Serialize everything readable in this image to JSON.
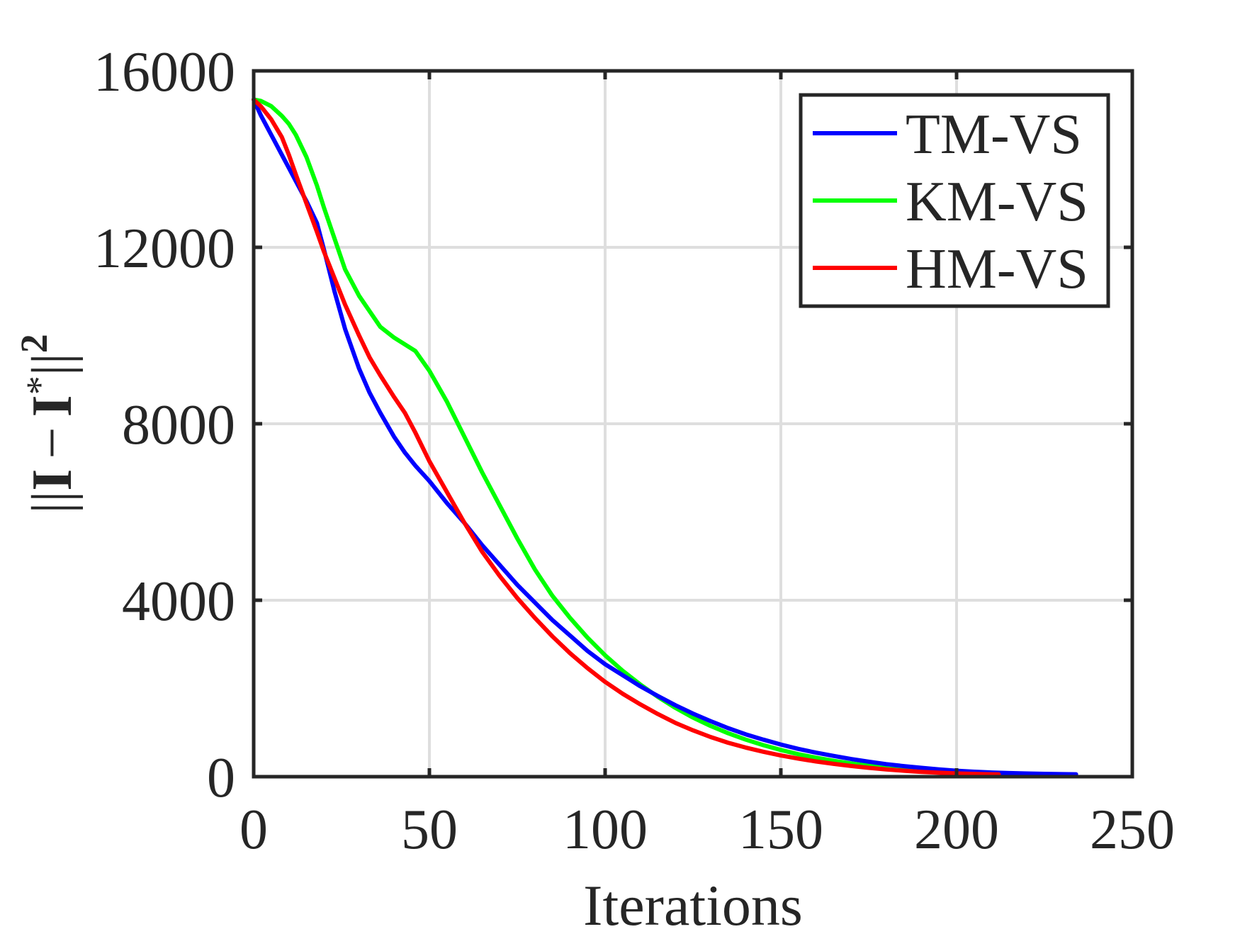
{
  "chart_data": {
    "type": "line",
    "title": "",
    "xlabel": "Iterations",
    "ylabel": "||I − I*||²",
    "ylabel_parts": {
      "bars_left": "||",
      "a": "I",
      "minus": "−",
      "b": "I",
      "star": "*",
      "bars_right": "||",
      "exp": "2"
    },
    "xlim": [
      0,
      250
    ],
    "ylim": [
      0,
      16000
    ],
    "xticks": [
      0,
      50,
      100,
      150,
      200,
      250
    ],
    "yticks": [
      0,
      4000,
      8000,
      12000,
      16000
    ],
    "xtick_labels": [
      "0",
      "50",
      "100",
      "150",
      "200",
      "250"
    ],
    "ytick_labels": [
      "0",
      "4000",
      "8000",
      "12000",
      "16000"
    ],
    "grid": true,
    "legend_position": "top-right",
    "series": [
      {
        "name": "TM-VS",
        "color": "#0000ff",
        "x": [
          0,
          2,
          5,
          8,
          10,
          12,
          15,
          18,
          20,
          23,
          26,
          30,
          33,
          36,
          40,
          43,
          46,
          50,
          55,
          60,
          65,
          70,
          75,
          80,
          85,
          90,
          95,
          100,
          105,
          110,
          115,
          120,
          125,
          130,
          135,
          140,
          145,
          150,
          155,
          160,
          165,
          170,
          175,
          180,
          185,
          190,
          195,
          200,
          205,
          210,
          215,
          220,
          225,
          230,
          234
        ],
        "y": [
          15350,
          15000,
          14550,
          14100,
          13800,
          13500,
          13050,
          12550,
          11950,
          11000,
          10150,
          9250,
          8700,
          8250,
          7700,
          7350,
          7050,
          6700,
          6200,
          5750,
          5250,
          4800,
          4350,
          3950,
          3550,
          3200,
          2850,
          2550,
          2300,
          2050,
          1830,
          1620,
          1430,
          1260,
          1100,
          960,
          840,
          730,
          630,
          545,
          470,
          400,
          340,
          285,
          240,
          200,
          165,
          135,
          112,
          95,
          82,
          72,
          64,
          58,
          55
        ]
      },
      {
        "name": "KM-VS",
        "color": "#00ff00",
        "x": [
          0,
          2,
          5,
          8,
          10,
          12,
          15,
          18,
          20,
          23,
          26,
          30,
          33,
          36,
          40,
          43,
          46,
          50,
          55,
          60,
          65,
          70,
          75,
          80,
          85,
          90,
          95,
          100,
          105,
          110,
          115,
          120,
          125,
          130,
          135,
          140,
          145,
          150,
          155,
          160,
          165,
          170,
          175,
          180,
          185,
          190,
          195,
          200,
          205,
          210,
          215,
          220,
          224
        ],
        "y": [
          15350,
          15320,
          15200,
          14980,
          14800,
          14550,
          14050,
          13400,
          12900,
          12200,
          11500,
          10900,
          10550,
          10200,
          9950,
          9800,
          9650,
          9200,
          8500,
          7700,
          6900,
          6150,
          5400,
          4700,
          4100,
          3600,
          3150,
          2750,
          2400,
          2090,
          1810,
          1560,
          1340,
          1150,
          985,
          840,
          715,
          605,
          510,
          430,
          360,
          300,
          250,
          205,
          168,
          138,
          113,
          92,
          76,
          63,
          54,
          48,
          45
        ]
      },
      {
        "name": "HM-VS",
        "color": "#ff0000",
        "x": [
          0,
          2,
          5,
          8,
          10,
          12,
          15,
          18,
          20,
          23,
          26,
          30,
          33,
          36,
          40,
          43,
          46,
          50,
          55,
          60,
          65,
          70,
          75,
          80,
          85,
          90,
          95,
          100,
          105,
          110,
          115,
          120,
          125,
          130,
          135,
          140,
          145,
          150,
          155,
          160,
          165,
          170,
          175,
          180,
          185,
          190,
          195,
          200,
          205,
          210,
          212
        ],
        "y": [
          15350,
          15200,
          14900,
          14500,
          14100,
          13650,
          13000,
          12350,
          11900,
          11300,
          10700,
          10000,
          9500,
          9100,
          8600,
          8250,
          7800,
          7150,
          6450,
          5750,
          5100,
          4550,
          4050,
          3600,
          3180,
          2800,
          2460,
          2150,
          1880,
          1640,
          1420,
          1220,
          1050,
          900,
          770,
          660,
          565,
          480,
          410,
          345,
          290,
          242,
          200,
          165,
          135,
          110,
          90,
          74,
          62,
          54,
          51
        ]
      }
    ]
  }
}
